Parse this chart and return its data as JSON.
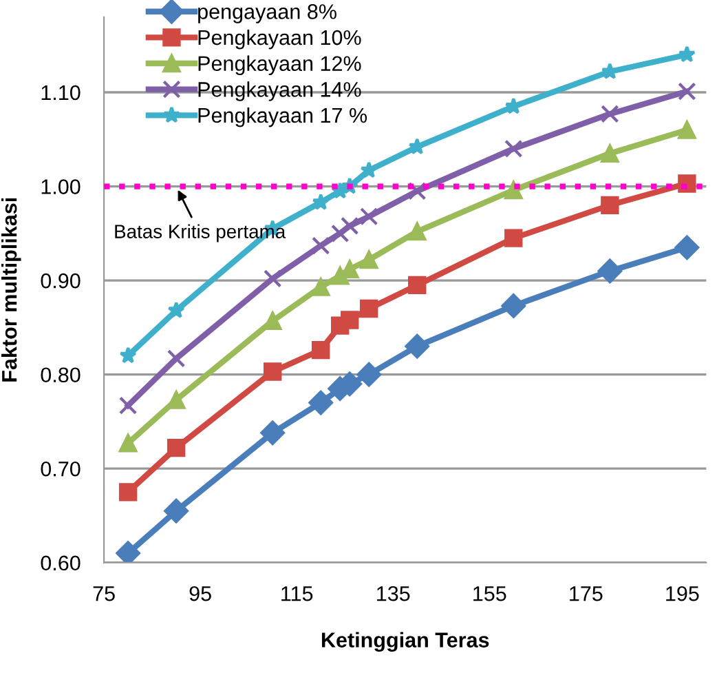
{
  "chart_data": {
    "type": "line",
    "xlabel": "Ketinggian Teras",
    "ylabel": "Faktor multiplikasi",
    "xlim": [
      75,
      200
    ],
    "xticks": [
      75,
      95,
      115,
      135,
      155,
      175,
      195
    ],
    "ylim": [
      0.6,
      1.18
    ],
    "yticks": [
      {
        "value": 0.6,
        "label": "0.60"
      },
      {
        "value": 0.7,
        "label": "0.70"
      },
      {
        "value": 0.8,
        "label": "0.80"
      },
      {
        "value": 0.9,
        "label": "0.90"
      },
      {
        "value": 1.0,
        "label": "1.00"
      },
      {
        "value": 1.1,
        "label": "1.10"
      }
    ],
    "grid": "y",
    "legend": "top left",
    "line_style": "solid",
    "x": [
      80,
      90,
      110,
      120,
      124,
      126,
      130,
      140,
      160,
      180,
      196
    ],
    "series": [
      {
        "name": "pengayaan 8%",
        "color": "#4a7ebb",
        "marker": "diamond",
        "values": [
          0.61,
          0.655,
          0.738,
          0.77,
          0.785,
          0.79,
          0.8,
          0.83,
          0.873,
          0.91,
          0.935
        ]
      },
      {
        "name": "Pengkayaan 10%",
        "color": "#d04a43",
        "marker": "square",
        "values": [
          0.675,
          0.722,
          0.803,
          0.826,
          0.852,
          0.858,
          0.87,
          0.895,
          0.945,
          0.98,
          1.003
        ]
      },
      {
        "name": "Pengkayaan 12%",
        "color": "#9bbb59",
        "marker": "triangle",
        "values": [
          0.727,
          0.773,
          0.857,
          0.893,
          0.905,
          0.912,
          0.922,
          0.952,
          0.996,
          1.035,
          1.06
        ]
      },
      {
        "name": "Pengkayaan 14%",
        "color": "#7f5fa8",
        "marker": "cross",
        "values": [
          0.767,
          0.817,
          0.902,
          0.937,
          0.95,
          0.958,
          0.968,
          0.995,
          1.04,
          1.077,
          1.101
        ]
      },
      {
        "name": "Pengkayaan 17 %",
        "color": "#3fb0cc",
        "marker": "star",
        "values": [
          0.82,
          0.868,
          0.955,
          0.983,
          0.995,
          1.0,
          1.017,
          1.042,
          1.085,
          1.122,
          1.14
        ]
      }
    ],
    "ref_lines": [
      {
        "axis": "y",
        "value": 1.0,
        "color": "#ff00cc",
        "line_style": "dotted"
      }
    ],
    "annotations": [
      {
        "text": "Batas Kritis pertama",
        "x": 90,
        "y": 1.0
      }
    ]
  }
}
